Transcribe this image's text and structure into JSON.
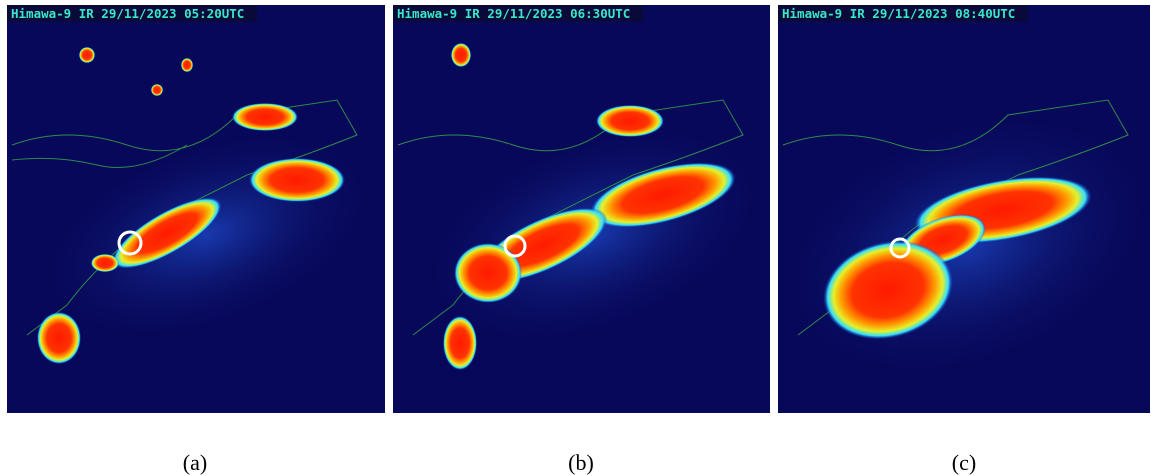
{
  "panels": [
    {
      "title": "Himawa-9 IR 29/11/2023 05:20UTC",
      "caption": "(a)"
    },
    {
      "title": "Himawa-9 IR 29/11/2023 06:30UTC",
      "caption": "(b)"
    },
    {
      "title": "Himawa-9 IR 29/11/2023 08:40UTC",
      "caption": "(c)"
    }
  ]
}
